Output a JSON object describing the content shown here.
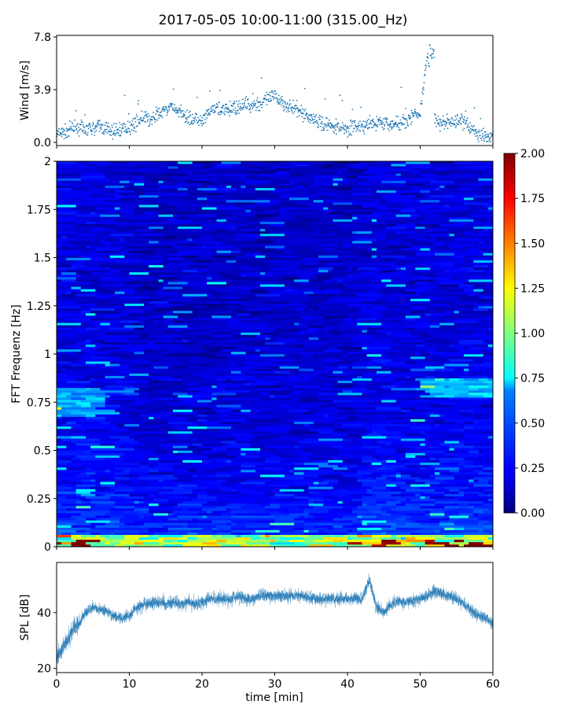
{
  "title": "2017-05-05 10:00-11:00 (315.00_Hz)",
  "chart_data": [
    {
      "type": "scatter",
      "name": "wind",
      "ylabel": "Wind [m/s]",
      "ylim": [
        0,
        7.8
      ],
      "yticks": [
        "0.0",
        "3.9",
        "7.8"
      ],
      "xlim": [
        0,
        60
      ],
      "color": "#1f77b4",
      "x": [
        0,
        1,
        2,
        3,
        4,
        5,
        6,
        7,
        8,
        9,
        10,
        11,
        12,
        13,
        14,
        15,
        16,
        17,
        18,
        19,
        20,
        21,
        22,
        23,
        24,
        25,
        26,
        27,
        28,
        29,
        30,
        31,
        32,
        33,
        34,
        35,
        36,
        37,
        38,
        39,
        40,
        41,
        42,
        43,
        44,
        45,
        46,
        47,
        48,
        49,
        50,
        51,
        52,
        53,
        54,
        55,
        56,
        57,
        58,
        59,
        60
      ],
      "y": [
        0.6,
        0.7,
        1.0,
        1.1,
        0.9,
        1.0,
        1.2,
        0.9,
        0.8,
        1.0,
        1.1,
        1.5,
        1.8,
        1.6,
        2.1,
        2.4,
        2.6,
        2.2,
        1.9,
        1.6,
        1.5,
        2.2,
        2.6,
        2.3,
        2.5,
        2.6,
        2.8,
        2.7,
        2.9,
        3.2,
        3.4,
        3.0,
        2.6,
        2.4,
        2.1,
        1.8,
        1.5,
        1.3,
        1.2,
        1.1,
        1.0,
        1.2,
        1.1,
        1.3,
        1.4,
        1.5,
        1.3,
        1.4,
        1.6,
        2.0,
        2.1,
        6.8,
        1.6,
        1.4,
        1.5,
        1.5,
        1.6,
        1.0,
        0.6,
        0.4,
        0.6
      ]
    },
    {
      "type": "heatmap",
      "name": "spectrogram",
      "ylabel": "FFT Frequenz [Hz]",
      "ylim": [
        0,
        2
      ],
      "yticks": [
        "0",
        "0.25",
        "0.5",
        "0.75",
        "1",
        "1.25",
        "1.5",
        "1.75",
        "2"
      ],
      "xlim": [
        0,
        60
      ],
      "colorbar": {
        "range": [
          0,
          2
        ],
        "ticks": [
          "0.00",
          "0.25",
          "0.50",
          "0.75",
          "1.00",
          "1.25",
          "1.50",
          "1.75",
          "2.00"
        ],
        "colormap": "jet"
      }
    },
    {
      "type": "line",
      "name": "spl",
      "ylabel": "SPL [dB]",
      "xlabel": "time [min]",
      "ylim": [
        18.5,
        58
      ],
      "yticks": [
        "20",
        "40"
      ],
      "xlim": [
        0,
        60
      ],
      "xticks": [
        "0",
        "10",
        "20",
        "30",
        "40",
        "50",
        "60"
      ],
      "color": "#1f77b4",
      "x": [
        0,
        1,
        2,
        3,
        4,
        5,
        6,
        7,
        8,
        9,
        10,
        11,
        12,
        13,
        14,
        15,
        16,
        17,
        18,
        19,
        20,
        21,
        22,
        23,
        24,
        25,
        26,
        27,
        28,
        29,
        30,
        31,
        32,
        33,
        34,
        35,
        36,
        37,
        38,
        39,
        40,
        41,
        42,
        43,
        44,
        45,
        46,
        47,
        48,
        49,
        50,
        51,
        52,
        53,
        54,
        55,
        56,
        57,
        58,
        59,
        60
      ],
      "y": [
        24,
        28,
        33,
        36,
        40,
        42,
        41,
        40,
        39,
        38,
        39,
        42,
        43,
        43,
        44,
        43,
        44,
        43,
        44,
        43,
        44,
        45,
        45,
        45,
        45,
        46,
        45,
        45,
        46,
        46,
        46,
        46,
        46,
        46,
        46,
        45,
        45,
        45,
        45,
        45,
        45,
        45,
        45,
        52,
        42,
        40,
        43,
        44,
        44,
        44,
        45,
        46,
        48,
        47,
        46,
        45,
        43,
        41,
        39,
        38,
        36
      ]
    }
  ]
}
